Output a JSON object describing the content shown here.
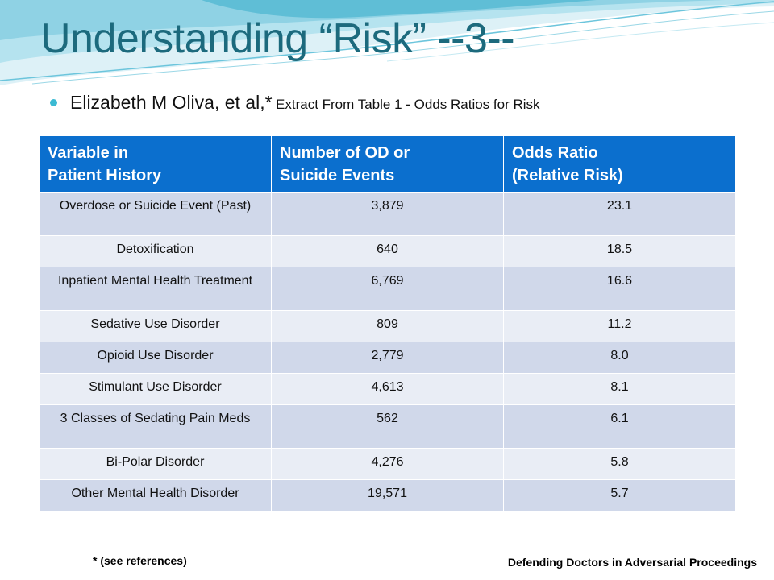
{
  "slide": {
    "title": "Understanding “Risk” --3--",
    "bullet": {
      "main": "Elizabeth M Oliva, et al,*",
      "small": "Extract From Table 1 - Odds Ratios for Risk"
    },
    "colors": {
      "title": "#1c6a7d",
      "header_bg": "#0b6fce",
      "row_odd": "#d0d8ea",
      "row_even": "#e9edf5",
      "bullet": "#3bbad3"
    },
    "table": {
      "headers": [
        [
          "Variable in",
          "Patient History"
        ],
        [
          "Number of OD or",
          "Suicide Events"
        ],
        [
          "Odds Ratio",
          "(Relative Risk)"
        ]
      ],
      "rows": [
        [
          "Overdose or Suicide Event (Past)",
          "3,879",
          "23.1"
        ],
        [
          "Detoxification",
          "640",
          "18.5"
        ],
        [
          "Inpatient Mental Health Treatment",
          "6,769",
          "16.6"
        ],
        [
          "Sedative Use Disorder",
          "809",
          "11.2"
        ],
        [
          "Opioid Use Disorder",
          "2,779",
          "8.0"
        ],
        [
          "Stimulant Use Disorder",
          "4,613",
          "8.1"
        ],
        [
          "3 Classes of Sedating Pain Meds",
          "562",
          "6.1"
        ],
        [
          "Bi-Polar Disorder",
          "4,276",
          "5.8"
        ],
        [
          "Other Mental Health Disorder",
          "19,571",
          "5.7"
        ]
      ]
    },
    "footnote": "* (see references)",
    "footer": "Defending Doctors in Adversarial Proceedings"
  }
}
